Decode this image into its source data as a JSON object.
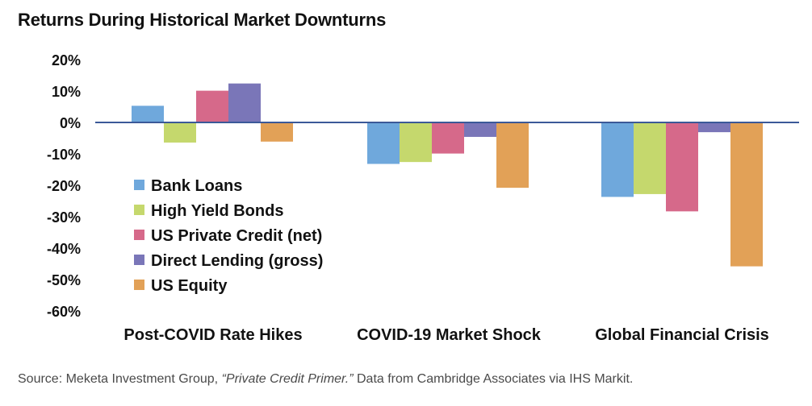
{
  "chart_data": {
    "type": "bar",
    "title": "Returns During Historical Market Downturns",
    "categories": [
      "Post-COVID Rate Hikes",
      "COVID-19 Market Shock",
      "Global Financial Crisis"
    ],
    "series": [
      {
        "name": "Bank Loans",
        "color": "#6fa8dc",
        "values": [
          5.3,
          -13.2,
          -23.7
        ]
      },
      {
        "name": "High Yield Bonds",
        "color": "#c5d86d",
        "values": [
          -6.4,
          -12.6,
          -22.8
        ]
      },
      {
        "name": "US Private Credit (net)",
        "color": "#d6698a",
        "values": [
          10.1,
          -9.9,
          -28.3
        ]
      },
      {
        "name": "Direct Lending (gross)",
        "color": "#7a76b8",
        "values": [
          12.4,
          -4.6,
          -3.1
        ]
      },
      {
        "name": "US Equity",
        "color": "#e2a157",
        "values": [
          -6.1,
          -20.8,
          -45.8
        ]
      }
    ],
    "ylim": [
      -60,
      20
    ],
    "yticks": [
      20,
      10,
      0,
      -10,
      -20,
      -30,
      -40,
      -50,
      -60
    ],
    "ytick_labels": [
      "20%",
      "10%",
      "0%",
      "-10%",
      "-20%",
      "-30%",
      "-40%",
      "-50%",
      "-60%"
    ],
    "xlabel": "",
    "ylabel": "",
    "grid": false,
    "legend_position": "bottom-left",
    "axis_color": "#3b5998"
  },
  "source": {
    "prefix": "Source: Meketa Investment Group, ",
    "quote": "“Private Credit Primer.”",
    "suffix": " Data from Cambridge Associates via IHS Markit."
  }
}
